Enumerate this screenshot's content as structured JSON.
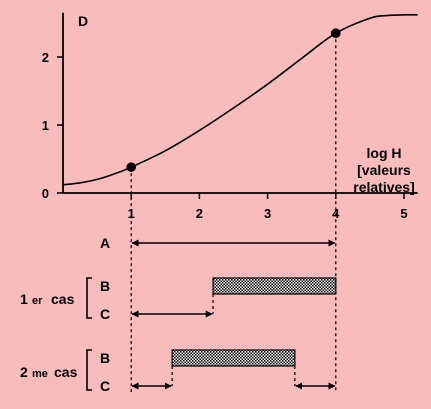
{
  "background": "#f9bcbc",
  "chart_data": {
    "type": "line",
    "ylabel": "D",
    "xlabel_lines": [
      "log H",
      "[valeurs",
      "relatives]"
    ],
    "x_ticks": [
      "1",
      "2",
      "3",
      "4",
      "5"
    ],
    "y_ticks": [
      "0",
      "1",
      "2"
    ],
    "xlim": [
      0,
      5.2
    ],
    "ylim": [
      0,
      2.65
    ],
    "series": [
      {
        "x": [
          0,
          0.25,
          0.5,
          0.75,
          1,
          1.5,
          2,
          2.5,
          3,
          3.5,
          4,
          4.5,
          4.75,
          5,
          5.2
        ],
        "y": [
          0.12,
          0.15,
          0.2,
          0.28,
          0.38,
          0.62,
          0.92,
          1.25,
          1.6,
          1.98,
          2.35,
          2.57,
          2.61,
          2.62,
          2.62
        ]
      }
    ],
    "points": [
      {
        "x": 1,
        "y": 0.38
      },
      {
        "x": 4,
        "y": 2.35
      }
    ],
    "ranges": [
      {
        "label": "A",
        "group": "",
        "kind": "arrow",
        "from": 1,
        "to": 4
      },
      {
        "label": "B",
        "group": "1 er cas",
        "kind": "bar",
        "from": 2.2,
        "to": 4
      },
      {
        "label": "C",
        "group": "1 er cas",
        "kind": "arrow",
        "from": 1,
        "to": 2.2
      },
      {
        "label": "B",
        "group": "2 me cas",
        "kind": "bar",
        "from": 1.6,
        "to": 3.4
      },
      {
        "label": "C",
        "group": "2 me cas",
        "kind": "arrow",
        "from": 1,
        "to": 1.6
      },
      {
        "label": "C",
        "group": "2 me cas",
        "kind": "arrow",
        "from": 3.4,
        "to": 4
      }
    ]
  },
  "cases": [
    {
      "main": "1",
      "sup": "er",
      "rest": "cas"
    },
    {
      "main": "2",
      "sup": "me",
      "rest": "cas"
    }
  ]
}
